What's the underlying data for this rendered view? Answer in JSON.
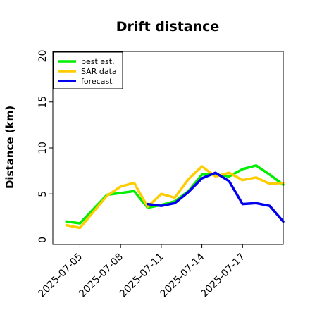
{
  "chart_data": {
    "type": "line",
    "title": "Drift distance",
    "xlabel": "",
    "ylabel": "Distance (km)",
    "ylim": [
      -0.5,
      20.5
    ],
    "xlim": [
      "2025-07-03",
      "2025-07-20"
    ],
    "yticks": [
      0,
      5,
      10,
      15,
      20
    ],
    "yticklabels": [
      "0",
      "5",
      "10",
      "15",
      "20"
    ],
    "xticks": [
      "2025-07-05",
      "2025-07-08",
      "2025-07-11",
      "2025-07-14",
      "2025-07-17"
    ],
    "xticklabels": [
      "2025-07-05",
      "2025-07-08",
      "2025-07-11",
      "2025-07-14",
      "2025-07-17"
    ],
    "grid": false,
    "legend_position": "top-left",
    "series": [
      {
        "name": "best est.",
        "color": "#00ee00",
        "x": [
          "2025-07-04",
          "2025-07-05",
          "2025-07-07",
          "2025-07-09",
          "2025-07-10",
          "2025-07-11",
          "2025-07-12",
          "2025-07-13",
          "2025-07-14",
          "2025-07-15",
          "2025-07-16",
          "2025-07-17",
          "2025-07-18",
          "2025-07-19",
          "2025-07-20"
        ],
        "values": [
          2.0,
          1.8,
          4.9,
          5.3,
          3.5,
          3.8,
          4.2,
          5.3,
          7.1,
          7.1,
          6.9,
          7.7,
          8.1,
          7.1,
          6.0
        ]
      },
      {
        "name": "SAR data",
        "color": "#ffcc00",
        "x": [
          "2025-07-04",
          "2025-07-05",
          "2025-07-07",
          "2025-07-08",
          "2025-07-09",
          "2025-07-10",
          "2025-07-11",
          "2025-07-12",
          "2025-07-13",
          "2025-07-14",
          "2025-07-15",
          "2025-07-16",
          "2025-07-17",
          "2025-07-18",
          "2025-07-19",
          "2025-07-20"
        ],
        "values": [
          1.6,
          1.3,
          4.8,
          5.8,
          6.2,
          3.6,
          5.0,
          4.6,
          6.6,
          8.0,
          6.9,
          7.3,
          6.5,
          6.8,
          6.1,
          6.2
        ]
      },
      {
        "name": "forecast",
        "color": "#0000ee",
        "x": [
          "2025-07-10",
          "2025-07-11",
          "2025-07-12",
          "2025-07-13",
          "2025-07-14",
          "2025-07-15",
          "2025-07-16",
          "2025-07-17",
          "2025-07-18",
          "2025-07-19",
          "2025-07-20"
        ],
        "values": [
          3.9,
          3.7,
          4.0,
          5.2,
          6.7,
          7.3,
          6.4,
          3.9,
          4.0,
          3.7,
          2.0
        ]
      }
    ]
  }
}
